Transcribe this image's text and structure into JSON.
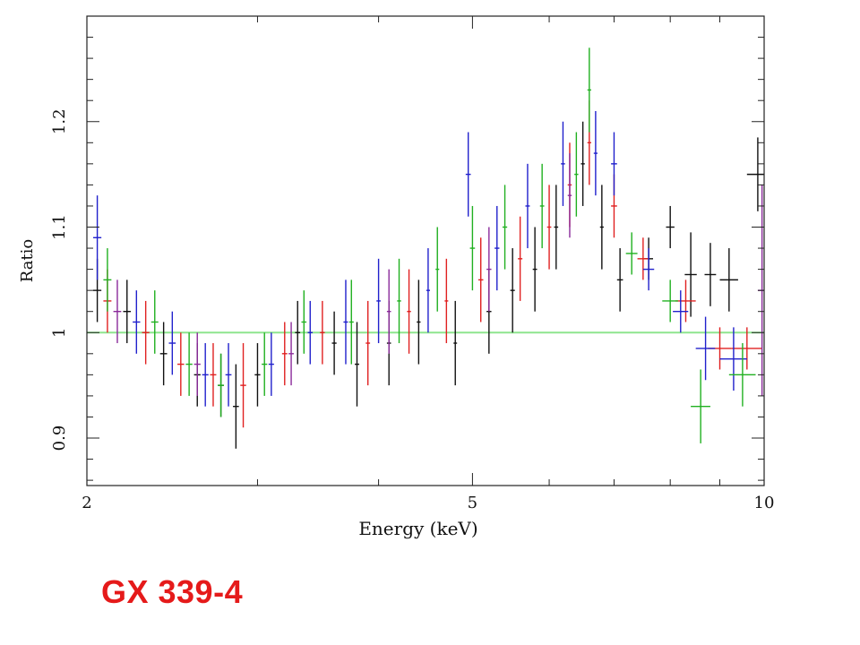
{
  "chart_data": {
    "type": "scatter",
    "title": "",
    "xlabel": "Energy (keV)",
    "ylabel": "Ratio",
    "xscale": "log",
    "xlim": [
      2,
      10
    ],
    "ylim": [
      0.855,
      1.3
    ],
    "x_ticks": [
      2,
      5,
      10
    ],
    "x_tick_labels": [
      "2",
      "5",
      "10"
    ],
    "y_ticks": [
      0.9,
      1,
      1.1,
      1.2
    ],
    "y_tick_labels": [
      "0.9",
      "1",
      "1.1",
      "1.2"
    ],
    "reference_line": {
      "y": 1.0,
      "color": "#8ee58e"
    },
    "grid": false,
    "legend": "none",
    "marker": "cross error bars",
    "series": [
      {
        "color": "#111111",
        "points": [
          {
            "x": 2.05,
            "y": 1.04,
            "xerr": 0.02,
            "yerr": 0.03
          },
          {
            "x": 2.2,
            "y": 1.02,
            "xerr": 0.02,
            "yerr": 0.03
          },
          {
            "x": 2.4,
            "y": 0.98,
            "xerr": 0.02,
            "yerr": 0.03
          },
          {
            "x": 2.6,
            "y": 0.96,
            "xerr": 0.02,
            "yerr": 0.03
          },
          {
            "x": 2.75,
            "y": 0.95,
            "xerr": 0.02,
            "yerr": 0.03
          },
          {
            "x": 2.85,
            "y": 0.93,
            "xerr": 0.02,
            "yerr": 0.04
          },
          {
            "x": 3.0,
            "y": 0.96,
            "xerr": 0.02,
            "yerr": 0.03
          },
          {
            "x": 3.3,
            "y": 1.0,
            "xerr": 0.02,
            "yerr": 0.03
          },
          {
            "x": 3.6,
            "y": 0.99,
            "xerr": 0.02,
            "yerr": 0.03
          },
          {
            "x": 3.8,
            "y": 0.97,
            "xerr": 0.02,
            "yerr": 0.04
          },
          {
            "x": 4.1,
            "y": 0.99,
            "xerr": 0.02,
            "yerr": 0.04
          },
          {
            "x": 4.4,
            "y": 1.01,
            "xerr": 0.02,
            "yerr": 0.04
          },
          {
            "x": 4.8,
            "y": 0.99,
            "xerr": 0.02,
            "yerr": 0.04
          },
          {
            "x": 5.2,
            "y": 1.02,
            "xerr": 0.03,
            "yerr": 0.04
          },
          {
            "x": 5.5,
            "y": 1.04,
            "xerr": 0.03,
            "yerr": 0.04
          },
          {
            "x": 5.8,
            "y": 1.06,
            "xerr": 0.03,
            "yerr": 0.04
          },
          {
            "x": 6.1,
            "y": 1.1,
            "xerr": 0.03,
            "yerr": 0.04
          },
          {
            "x": 6.5,
            "y": 1.16,
            "xerr": 0.03,
            "yerr": 0.04
          },
          {
            "x": 6.8,
            "y": 1.1,
            "xerr": 0.03,
            "yerr": 0.04
          },
          {
            "x": 7.1,
            "y": 1.05,
            "xerr": 0.05,
            "yerr": 0.03
          },
          {
            "x": 7.6,
            "y": 1.07,
            "xerr": 0.08,
            "yerr": 0.02
          },
          {
            "x": 8.0,
            "y": 1.1,
            "xerr": 0.08,
            "yerr": 0.02
          },
          {
            "x": 8.4,
            "y": 1.055,
            "xerr": 0.12,
            "yerr": 0.04
          },
          {
            "x": 8.8,
            "y": 1.055,
            "xerr": 0.12,
            "yerr": 0.03
          },
          {
            "x": 9.2,
            "y": 1.05,
            "xerr": 0.2,
            "yerr": 0.03
          },
          {
            "x": 9.85,
            "y": 1.15,
            "xerr": 0.25,
            "yerr": 0.035
          }
        ]
      },
      {
        "color": "#e02020",
        "points": [
          {
            "x": 2.1,
            "y": 1.03,
            "xerr": 0.02,
            "yerr": 0.03
          },
          {
            "x": 2.3,
            "y": 1.0,
            "xerr": 0.02,
            "yerr": 0.03
          },
          {
            "x": 2.5,
            "y": 0.97,
            "xerr": 0.02,
            "yerr": 0.03
          },
          {
            "x": 2.7,
            "y": 0.96,
            "xerr": 0.02,
            "yerr": 0.03
          },
          {
            "x": 2.9,
            "y": 0.95,
            "xerr": 0.02,
            "yerr": 0.04
          },
          {
            "x": 3.2,
            "y": 0.98,
            "xerr": 0.02,
            "yerr": 0.03
          },
          {
            "x": 3.5,
            "y": 1.0,
            "xerr": 0.02,
            "yerr": 0.03
          },
          {
            "x": 3.9,
            "y": 0.99,
            "xerr": 0.02,
            "yerr": 0.04
          },
          {
            "x": 4.3,
            "y": 1.02,
            "xerr": 0.02,
            "yerr": 0.04
          },
          {
            "x": 4.7,
            "y": 1.03,
            "xerr": 0.02,
            "yerr": 0.04
          },
          {
            "x": 5.1,
            "y": 1.05,
            "xerr": 0.03,
            "yerr": 0.04
          },
          {
            "x": 5.6,
            "y": 1.07,
            "xerr": 0.03,
            "yerr": 0.04
          },
          {
            "x": 6.0,
            "y": 1.1,
            "xerr": 0.03,
            "yerr": 0.04
          },
          {
            "x": 6.3,
            "y": 1.14,
            "xerr": 0.03,
            "yerr": 0.04
          },
          {
            "x": 6.6,
            "y": 1.18,
            "xerr": 0.03,
            "yerr": 0.04
          },
          {
            "x": 7.0,
            "y": 1.12,
            "xerr": 0.05,
            "yerr": 0.03
          },
          {
            "x": 7.5,
            "y": 1.07,
            "xerr": 0.1,
            "yerr": 0.02
          },
          {
            "x": 8.3,
            "y": 1.03,
            "xerr": 0.2,
            "yerr": 0.02
          },
          {
            "x": 9.0,
            "y": 0.985,
            "xerr": 0.25,
            "yerr": 0.02
          },
          {
            "x": 9.6,
            "y": 0.985,
            "xerr": 0.35,
            "yerr": 0.02
          }
        ]
      },
      {
        "color": "#2020cc",
        "points": [
          {
            "x": 2.05,
            "y": 1.09,
            "xerr": 0.02,
            "yerr": 0.04
          },
          {
            "x": 2.25,
            "y": 1.01,
            "xerr": 0.02,
            "yerr": 0.03
          },
          {
            "x": 2.45,
            "y": 0.99,
            "xerr": 0.02,
            "yerr": 0.03
          },
          {
            "x": 2.65,
            "y": 0.96,
            "xerr": 0.02,
            "yerr": 0.03
          },
          {
            "x": 2.8,
            "y": 0.96,
            "xerr": 0.02,
            "yerr": 0.03
          },
          {
            "x": 3.1,
            "y": 0.97,
            "xerr": 0.02,
            "yerr": 0.03
          },
          {
            "x": 3.4,
            "y": 1.0,
            "xerr": 0.02,
            "yerr": 0.03
          },
          {
            "x": 3.7,
            "y": 1.01,
            "xerr": 0.02,
            "yerr": 0.04
          },
          {
            "x": 4.0,
            "y": 1.03,
            "xerr": 0.02,
            "yerr": 0.04
          },
          {
            "x": 4.5,
            "y": 1.04,
            "xerr": 0.02,
            "yerr": 0.04
          },
          {
            "x": 4.95,
            "y": 1.15,
            "xerr": 0.03,
            "yerr": 0.04
          },
          {
            "x": 5.3,
            "y": 1.08,
            "xerr": 0.03,
            "yerr": 0.04
          },
          {
            "x": 5.7,
            "y": 1.12,
            "xerr": 0.03,
            "yerr": 0.04
          },
          {
            "x": 6.2,
            "y": 1.16,
            "xerr": 0.03,
            "yerr": 0.04
          },
          {
            "x": 6.7,
            "y": 1.17,
            "xerr": 0.03,
            "yerr": 0.04
          },
          {
            "x": 7.0,
            "y": 1.16,
            "xerr": 0.05,
            "yerr": 0.03
          },
          {
            "x": 7.6,
            "y": 1.06,
            "xerr": 0.1,
            "yerr": 0.02
          },
          {
            "x": 8.2,
            "y": 1.02,
            "xerr": 0.15,
            "yerr": 0.02
          },
          {
            "x": 8.7,
            "y": 0.985,
            "xerr": 0.2,
            "yerr": 0.03
          },
          {
            "x": 9.3,
            "y": 0.975,
            "xerr": 0.3,
            "yerr": 0.03
          }
        ]
      },
      {
        "color": "#20b020",
        "points": [
          {
            "x": 2.1,
            "y": 1.05,
            "xerr": 0.02,
            "yerr": 0.03
          },
          {
            "x": 2.35,
            "y": 1.01,
            "xerr": 0.02,
            "yerr": 0.03
          },
          {
            "x": 2.55,
            "y": 0.97,
            "xerr": 0.02,
            "yerr": 0.03
          },
          {
            "x": 2.75,
            "y": 0.95,
            "xerr": 0.02,
            "yerr": 0.03
          },
          {
            "x": 3.05,
            "y": 0.97,
            "xerr": 0.02,
            "yerr": 0.03
          },
          {
            "x": 3.35,
            "y": 1.01,
            "xerr": 0.02,
            "yerr": 0.03
          },
          {
            "x": 3.75,
            "y": 1.01,
            "xerr": 0.02,
            "yerr": 0.04
          },
          {
            "x": 4.2,
            "y": 1.03,
            "xerr": 0.02,
            "yerr": 0.04
          },
          {
            "x": 4.6,
            "y": 1.06,
            "xerr": 0.02,
            "yerr": 0.04
          },
          {
            "x": 5.0,
            "y": 1.08,
            "xerr": 0.03,
            "yerr": 0.04
          },
          {
            "x": 5.4,
            "y": 1.1,
            "xerr": 0.03,
            "yerr": 0.04
          },
          {
            "x": 5.9,
            "y": 1.12,
            "xerr": 0.03,
            "yerr": 0.04
          },
          {
            "x": 6.4,
            "y": 1.15,
            "xerr": 0.03,
            "yerr": 0.04
          },
          {
            "x": 6.6,
            "y": 1.23,
            "xerr": 0.03,
            "yerr": 0.04
          },
          {
            "x": 7.3,
            "y": 1.075,
            "xerr": 0.1,
            "yerr": 0.02
          },
          {
            "x": 8.0,
            "y": 1.03,
            "xerr": 0.15,
            "yerr": 0.02
          },
          {
            "x": 8.6,
            "y": 0.93,
            "xerr": 0.2,
            "yerr": 0.035
          },
          {
            "x": 9.5,
            "y": 0.96,
            "xerr": 0.3,
            "yerr": 0.03
          }
        ]
      },
      {
        "color": "#8a2a9a",
        "points": [
          {
            "x": 2.15,
            "y": 1.02,
            "xerr": 0.02,
            "yerr": 0.03
          },
          {
            "x": 2.6,
            "y": 0.97,
            "xerr": 0.02,
            "yerr": 0.03
          },
          {
            "x": 3.25,
            "y": 0.98,
            "xerr": 0.02,
            "yerr": 0.03
          },
          {
            "x": 4.1,
            "y": 1.02,
            "xerr": 0.02,
            "yerr": 0.04
          },
          {
            "x": 5.2,
            "y": 1.06,
            "xerr": 0.03,
            "yerr": 0.04
          },
          {
            "x": 6.3,
            "y": 1.13,
            "xerr": 0.03,
            "yerr": 0.04
          },
          {
            "x": 9.95,
            "y": 1.04,
            "xerr": 0.1,
            "yerr": 0.1
          }
        ]
      }
    ]
  },
  "label": {
    "text": "GX 339-4",
    "color": "#e51a1a"
  }
}
